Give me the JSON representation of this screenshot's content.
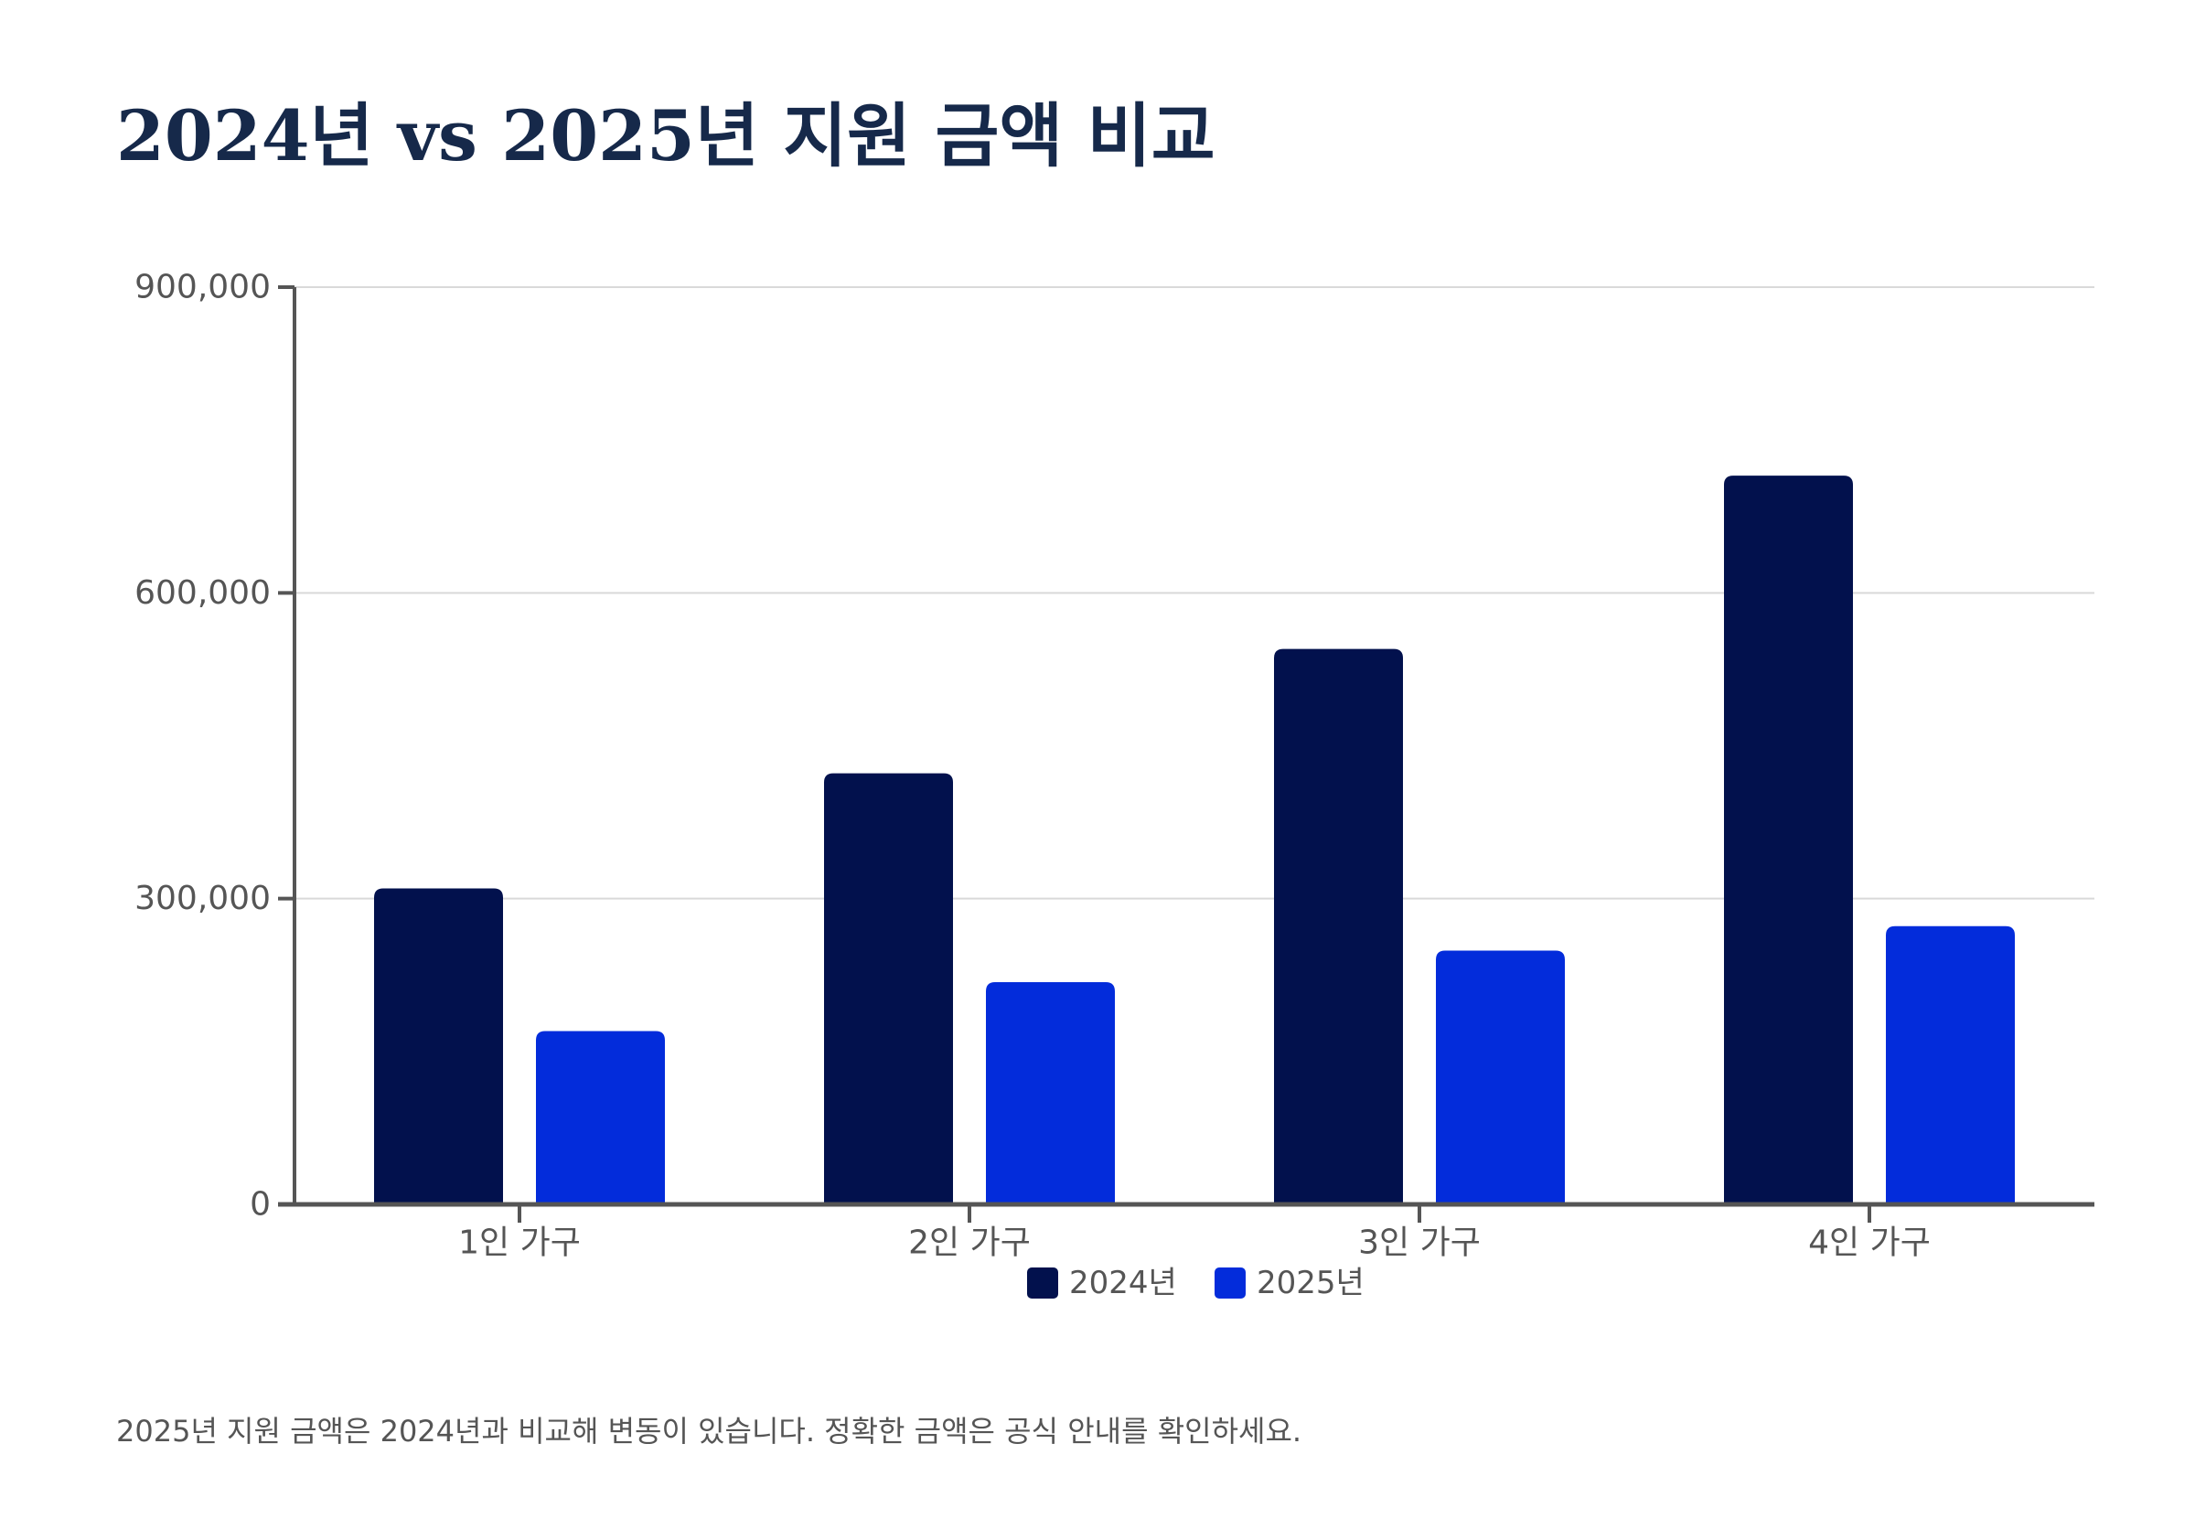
{
  "chart_data": {
    "type": "bar",
    "title": "2024년 vs 2025년 지원 금액 비교",
    "categories": [
      "1인 가구",
      "2인 가구",
      "3인 가구",
      "4인 가구"
    ],
    "series": [
      {
        "name": "2024년",
        "values": [
          310000,
          423000,
          545000,
          715000
        ],
        "color": "#02114d"
      },
      {
        "name": "2025년",
        "values": [
          170000,
          218000,
          249000,
          273000
        ],
        "color": "#032cdb"
      }
    ],
    "yticks": [
      "0",
      "300,000",
      "600,000",
      "900,000"
    ],
    "ylim": [
      0,
      900000
    ],
    "grid": true,
    "legend_position": "bottom",
    "footnote": "2025년 지원 금액은 2024년과 비교해 변동이 있습니다. 정확한 금액은 공식 안내를 확인하세요."
  }
}
